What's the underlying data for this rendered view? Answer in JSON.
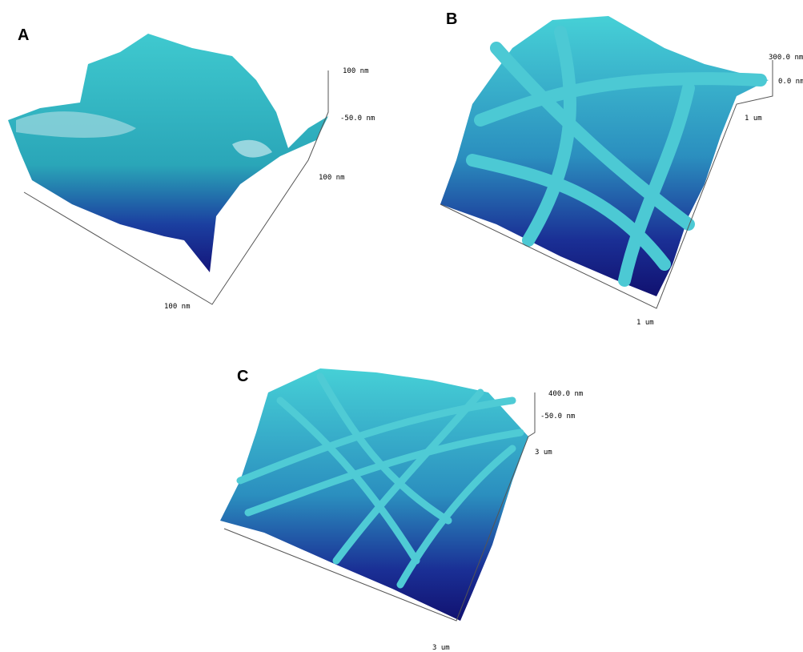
{
  "panels": [
    {
      "label": "A",
      "z_top": "100 nm",
      "z_bottom": "-50.0 nm",
      "y_axis": "100 nm",
      "x_axis": "100 nm"
    },
    {
      "label": "B",
      "z_top": "300.0 nm",
      "z_bottom": "0.0 nm",
      "y_axis": "1 um",
      "x_axis": "1 um"
    },
    {
      "label": "C",
      "z_top": "400.0 nm",
      "z_bottom": "-50.0 nm",
      "y_axis": "3 um",
      "x_axis": "3 um"
    }
  ]
}
